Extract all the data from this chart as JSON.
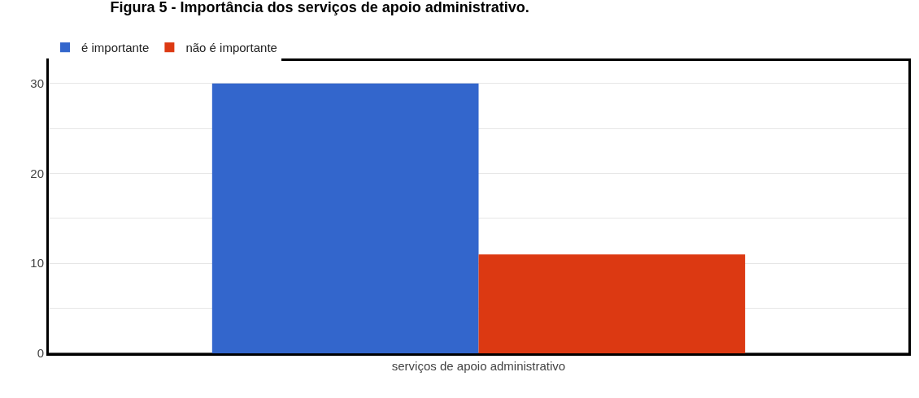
{
  "chart_data": {
    "type": "bar",
    "title": "Figura 5 - Importância dos serviços de apoio administrativo.",
    "categories": [
      "serviços de apoio administrativo"
    ],
    "series": [
      {
        "name": "é importante",
        "color": "#3366cc",
        "values": [
          30
        ]
      },
      {
        "name": "não é importante",
        "color": "#dc3912",
        "values": [
          11
        ]
      }
    ],
    "ylim": [
      0,
      32.5
    ],
    "yticks": [
      0,
      {
        "value": 5,
        "label": null
      },
      10,
      {
        "value": 15,
        "label": null
      },
      20,
      {
        "value": 25,
        "label": null
      },
      30
    ],
    "grid": "y",
    "legend": "top left"
  }
}
